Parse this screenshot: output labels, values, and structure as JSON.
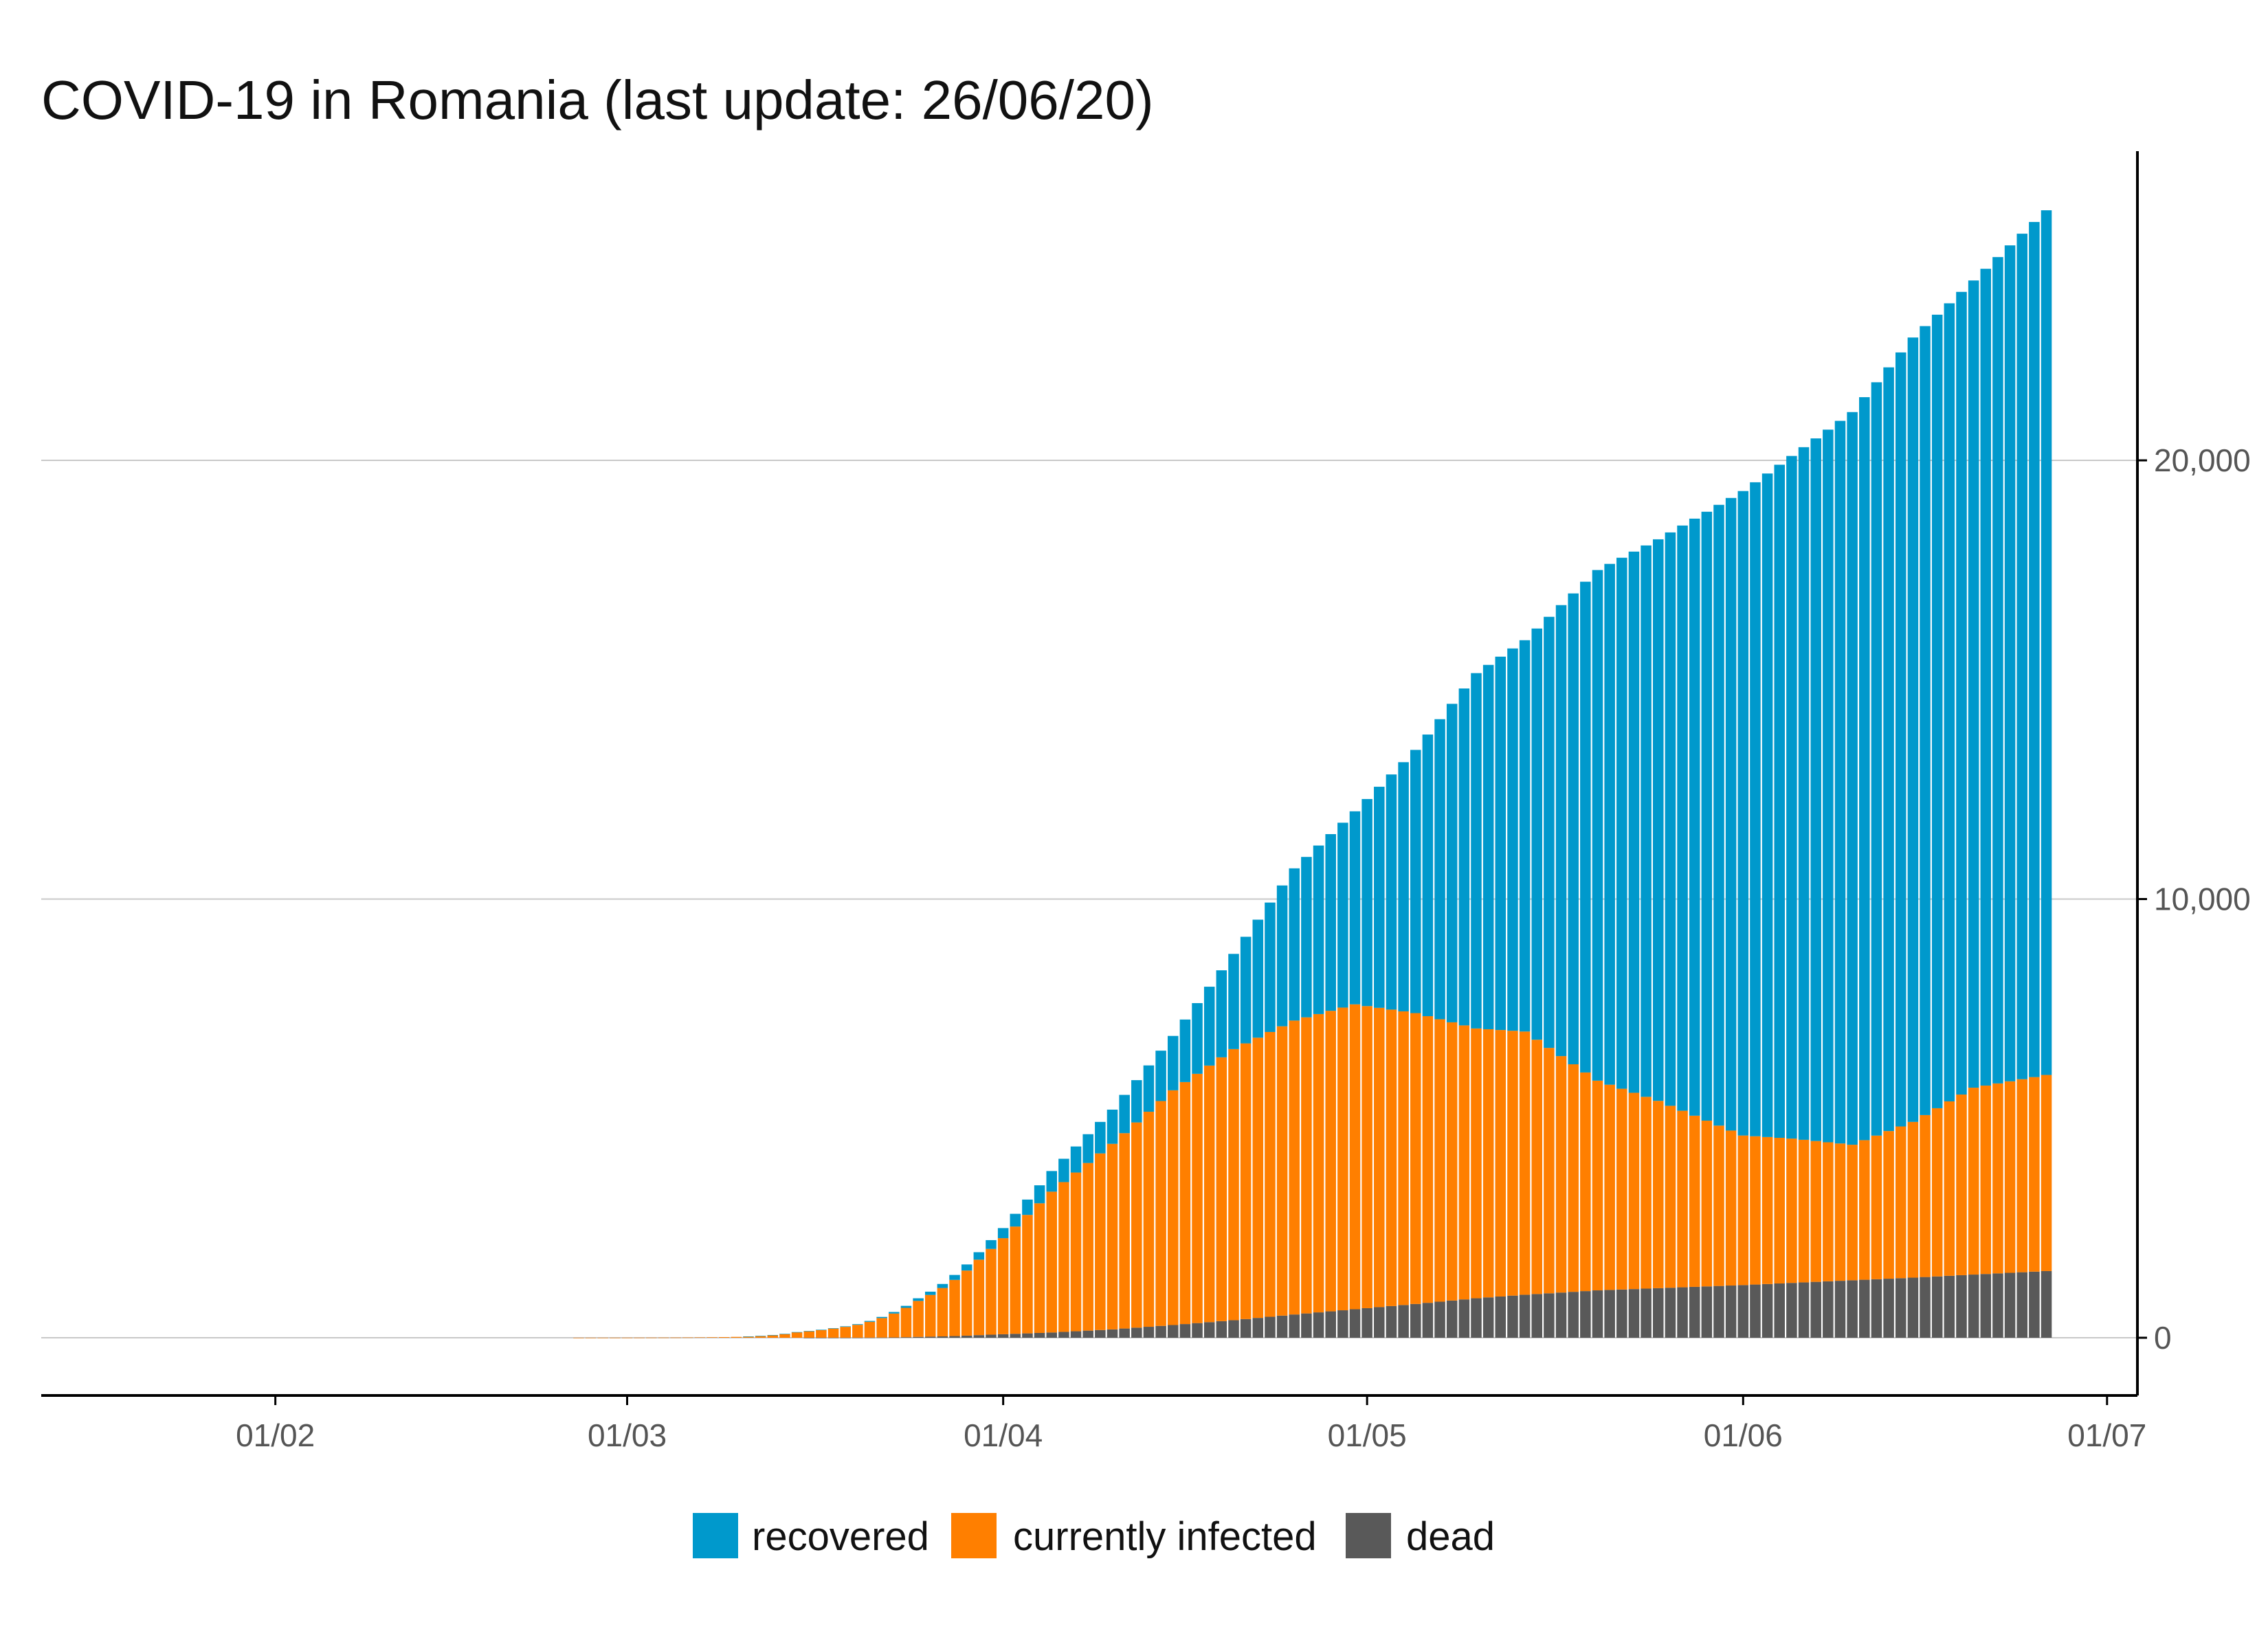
{
  "chart_data": {
    "type": "bar",
    "stacked": true,
    "title": "COVID-19 in Romania (last update: 26/06/20)",
    "xlabel": "",
    "ylabel": "",
    "x_start": "2020-02-26",
    "x_end": "2020-06-26",
    "x_ticks": [
      "01/02",
      "01/03",
      "01/04",
      "01/05",
      "01/06",
      "01/07"
    ],
    "y_ticks": [
      "0",
      "10,000",
      "20,000"
    ],
    "ylim": [
      -1300,
      26800
    ],
    "y_axis_side": "right",
    "grid": "horizontal",
    "legend_position": "bottom",
    "colors": {
      "recovered": "#0099CC",
      "currently_infected": "#FF7F00",
      "dead": "#595959"
    },
    "keypoints": {
      "dates": [
        "2020-02-26",
        "2020-03-05",
        "2020-03-10",
        "2020-03-15",
        "2020-03-20",
        "2020-03-25",
        "2020-03-30",
        "2020-04-01",
        "2020-04-05",
        "2020-04-10",
        "2020-04-15",
        "2020-04-20",
        "2020-04-25",
        "2020-04-30",
        "2020-05-05",
        "2020-05-10",
        "2020-05-14",
        "2020-05-20",
        "2020-05-25",
        "2020-06-01",
        "2020-06-05",
        "2020-06-10",
        "2020-06-15",
        "2020-06-20",
        "2020-06-26"
      ],
      "total": [
        1,
        5,
        20,
        130,
        310,
        900,
        1950,
        2500,
        3800,
        5200,
        6880,
        8750,
        10700,
        12000,
        13400,
        15150,
        15900,
        17500,
        18200,
        19300,
        20100,
        21100,
        22800,
        24100,
        25700
      ],
      "currently_infected": [
        1,
        5,
        20,
        125,
        295,
        840,
        1780,
        2270,
        3330,
        4420,
        5640,
        6580,
        7230,
        7600,
        7400,
        7050,
        6980,
        5860,
        5400,
        4610,
        4540,
        4400,
        4920,
        5700,
        5990
      ],
      "dead": [
        0,
        0,
        0,
        0,
        2,
        20,
        60,
        80,
        120,
        190,
        290,
        400,
        530,
        650,
        770,
        900,
        980,
        1080,
        1130,
        1200,
        1250,
        1310,
        1370,
        1440,
        1520
      ]
    },
    "series": [
      {
        "name": "recovered"
      },
      {
        "name": "currently infected"
      },
      {
        "name": "dead"
      }
    ]
  }
}
